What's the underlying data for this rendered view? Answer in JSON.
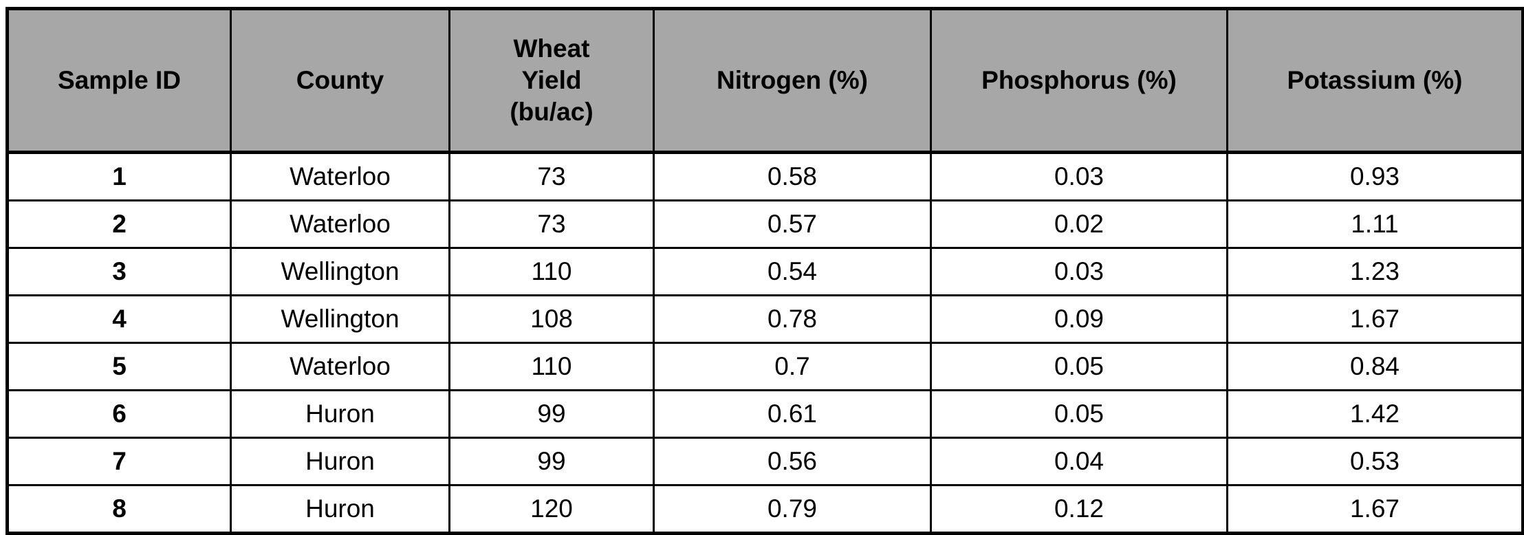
{
  "table": {
    "name": "soil-sample-table",
    "header_bg_color": "#a7a7a7",
    "border_color": "#000000",
    "columns": [
      "Sample ID",
      "County",
      "Wheat\nYield\n(bu/ac)",
      "Nitrogen (%)",
      "Phosphorus (%)",
      "Potassium (%)"
    ],
    "rows": [
      [
        "1",
        "Waterloo",
        "73",
        "0.58",
        "0.03",
        "0.93"
      ],
      [
        "2",
        "Waterloo",
        "73",
        "0.57",
        "0.02",
        "1.11"
      ],
      [
        "3",
        "Wellington",
        "110",
        "0.54",
        "0.03",
        "1.23"
      ],
      [
        "4",
        "Wellington",
        "108",
        "0.78",
        "0.09",
        "1.67"
      ],
      [
        "5",
        "Waterloo",
        "110",
        "0.7",
        "0.05",
        "0.84"
      ],
      [
        "6",
        "Huron",
        "99",
        "0.61",
        "0.05",
        "1.42"
      ],
      [
        "7",
        "Huron",
        "99",
        "0.56",
        "0.04",
        "0.53"
      ],
      [
        "8",
        "Huron",
        "120",
        "0.79",
        "0.12",
        "1.67"
      ]
    ]
  },
  "chart_data": {
    "type": "table",
    "title": "",
    "categories": [
      "Sample ID",
      "County",
      "Wheat Yield (bu/ac)",
      "Nitrogen (%)",
      "Phosphorus (%)",
      "Potassium (%)"
    ],
    "series": [
      {
        "name": "Wheat Yield (bu/ac)",
        "values": [
          73,
          73,
          110,
          108,
          110,
          99,
          99,
          120
        ]
      },
      {
        "name": "Nitrogen (%)",
        "values": [
          0.58,
          0.57,
          0.54,
          0.78,
          0.7,
          0.61,
          0.56,
          0.79
        ]
      },
      {
        "name": "Phosphorus (%)",
        "values": [
          0.03,
          0.02,
          0.03,
          0.09,
          0.05,
          0.05,
          0.04,
          0.12
        ]
      },
      {
        "name": "Potassium (%)",
        "values": [
          0.93,
          1.11,
          1.23,
          1.67,
          0.84,
          1.42,
          0.53,
          1.67
        ]
      }
    ]
  }
}
